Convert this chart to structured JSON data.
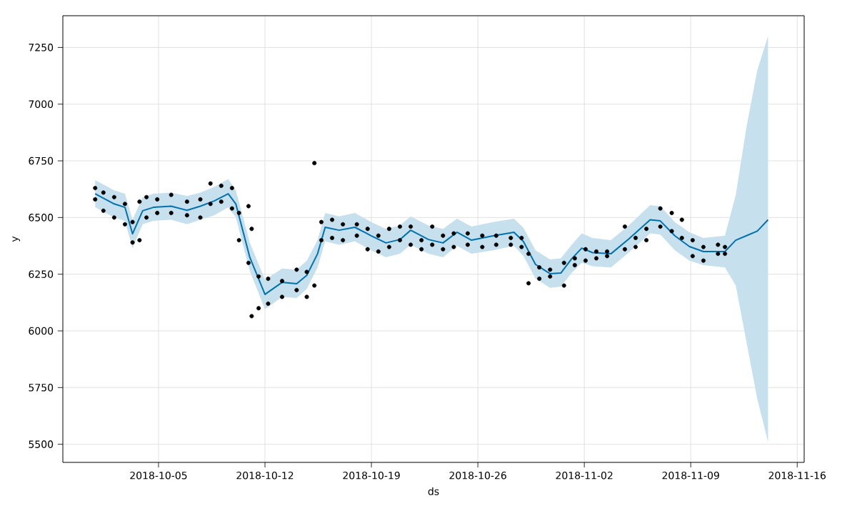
{
  "chart_data": {
    "type": "scatter",
    "xlabel": "ds",
    "ylabel": "y",
    "grid": true,
    "xlim": [
      "2018-09-28T17:00",
      "2018-11-16T11:00"
    ],
    "ylim": [
      5420,
      7390
    ],
    "xticks": [
      "2018-10-05",
      "2018-10-12",
      "2018-10-19",
      "2018-10-26",
      "2018-11-02",
      "2018-11-09",
      "2018-11-16"
    ],
    "yticks": [
      5500,
      5750,
      6000,
      6250,
      6500,
      6750,
      7000,
      7250
    ],
    "series": [
      {
        "color": "#000000",
        "marker": "circle",
        "x": [
          "2018-09-30T20:00",
          "2018-09-30T20:00",
          "2018-10-01T09:00",
          "2018-10-01T09:00",
          "2018-10-02T02:00",
          "2018-10-02T02:00",
          "2018-10-02T19:00",
          "2018-10-02T19:00",
          "2018-10-03T07:00",
          "2018-10-03T07:00",
          "2018-10-03T18:00",
          "2018-10-03T18:00",
          "2018-10-04T05:00",
          "2018-10-04T05:00",
          "2018-10-04T22:00",
          "2018-10-04T22:00",
          "2018-10-05T20:00",
          "2018-10-05T20:00",
          "2018-10-06T21:00",
          "2018-10-06T21:00",
          "2018-10-07T18:00",
          "2018-10-07T18:00",
          "2018-10-08T10:00",
          "2018-10-08T10:00",
          "2018-10-09T03:00",
          "2018-10-09T03:00",
          "2018-10-09T20:00",
          "2018-10-09T20:00",
          "2018-10-10T07:00",
          "2018-10-10T07:00",
          "2018-10-10T22:00",
          "2018-10-10T22:00",
          "2018-10-11T03:00",
          "2018-10-11T03:00",
          "2018-10-11T14:00",
          "2018-10-11T14:00",
          "2018-10-12T05:00",
          "2018-10-12T05:00",
          "2018-10-13T03:00",
          "2018-10-13T03:00",
          "2018-10-14T02:00",
          "2018-10-14T02:00",
          "2018-10-14T18:00",
          "2018-10-14T18:00",
          "2018-10-15T06:00",
          "2018-10-15T06:00",
          "2018-10-15T17:00",
          "2018-10-15T17:00",
          "2018-10-16T10:00",
          "2018-10-16T10:00",
          "2018-10-17T03:00",
          "2018-10-17T03:00",
          "2018-10-18T01:00",
          "2018-10-18T01:00",
          "2018-10-18T18:00",
          "2018-10-18T18:00",
          "2018-10-19T11:00",
          "2018-10-19T11:00",
          "2018-10-20T04:00",
          "2018-10-20T04:00",
          "2018-10-20T21:00",
          "2018-10-20T21:00",
          "2018-10-21T14:00",
          "2018-10-21T14:00",
          "2018-10-22T07:00",
          "2018-10-22T07:00",
          "2018-10-23T00:00",
          "2018-10-23T00:00",
          "2018-10-23T17:00",
          "2018-10-23T17:00",
          "2018-10-24T10:00",
          "2018-10-24T10:00",
          "2018-10-25T08:00",
          "2018-10-25T08:00",
          "2018-10-26T07:00",
          "2018-10-26T07:00",
          "2018-10-27T05:00",
          "2018-10-27T05:00",
          "2018-10-28T04:00",
          "2018-10-28T04:00",
          "2018-10-28T21:00",
          "2018-10-28T21:00",
          "2018-10-29T08:00",
          "2018-10-29T08:00",
          "2018-10-30T01:00",
          "2018-10-30T01:00",
          "2018-10-30T18:00",
          "2018-10-30T18:00",
          "2018-10-31T16:00",
          "2018-10-31T16:00",
          "2018-11-01T09:00",
          "2018-11-01T09:00",
          "2018-11-02T02:00",
          "2018-11-02T02:00",
          "2018-11-02T19:00",
          "2018-11-02T19:00",
          "2018-11-03T12:00",
          "2018-11-03T12:00",
          "2018-11-04T16:00",
          "2018-11-04T16:00",
          "2018-11-05T09:00",
          "2018-11-05T09:00",
          "2018-11-06T02:00",
          "2018-11-06T02:00",
          "2018-11-07T00:00",
          "2018-11-07T00:00",
          "2018-11-07T18:00",
          "2018-11-07T18:00",
          "2018-11-08T10:00",
          "2018-11-08T10:00",
          "2018-11-09T03:00",
          "2018-11-09T03:00",
          "2018-11-09T20:00",
          "2018-11-09T20:00",
          "2018-11-10T19:00",
          "2018-11-10T19:00",
          "2018-11-11T06:00",
          "2018-11-11T06:00"
        ],
        "values": [
          6630,
          6580,
          6610,
          6530,
          6590,
          6500,
          6560,
          6470,
          6480,
          6390,
          6570,
          6400,
          6590,
          6500,
          6580,
          6520,
          6600,
          6520,
          6570,
          6510,
          6580,
          6500,
          6650,
          6560,
          6640,
          6570,
          6630,
          6540,
          6520,
          6400,
          6550,
          6300,
          6450,
          6065,
          6240,
          6100,
          6230,
          6120,
          6220,
          6150,
          6270,
          6180,
          6260,
          6150,
          6740,
          6200,
          6480,
          6400,
          6490,
          6410,
          6470,
          6400,
          6470,
          6420,
          6450,
          6360,
          6420,
          6350,
          6450,
          6370,
          6460,
          6400,
          6460,
          6380,
          6400,
          6360,
          6460,
          6380,
          6420,
          6360,
          6430,
          6370,
          6430,
          6380,
          6420,
          6370,
          6420,
          6380,
          6410,
          6380,
          6410,
          6370,
          6340,
          6210,
          6280,
          6230,
          6270,
          6240,
          6300,
          6200,
          6320,
          6290,
          6360,
          6310,
          6350,
          6320,
          6350,
          6330,
          6460,
          6360,
          6410,
          6370,
          6450,
          6400,
          6540,
          6460,
          6520,
          6440,
          6490,
          6410,
          6400,
          6330,
          6370,
          6310,
          6380,
          6340,
          6370,
          6340
        ]
      },
      {
        "type": "line",
        "color": "#0072b2",
        "marker": "none",
        "x": [
          "2018-09-30T20:00",
          "2018-10-02T02:00",
          "2018-10-02T19:00",
          "2018-10-03T07:00",
          "2018-10-03T23:00",
          "2018-10-04T16:00",
          "2018-10-05T20:00",
          "2018-10-06T21:00",
          "2018-10-07T18:00",
          "2018-10-08T16:00",
          "2018-10-09T14:00",
          "2018-10-10T02:00",
          "2018-10-11T00:00",
          "2018-10-12T00:00",
          "2018-10-13T03:00",
          "2018-10-14T02:00",
          "2018-10-14T18:00",
          "2018-10-15T11:00",
          "2018-10-15T23:00",
          "2018-10-16T21:00",
          "2018-10-17T22:00",
          "2018-10-19T00:00",
          "2018-10-19T23:00",
          "2018-10-20T21:00",
          "2018-10-21T14:00",
          "2018-10-22T18:00",
          "2018-10-23T17:00",
          "2018-10-24T15:00",
          "2018-10-25T14:00",
          "2018-10-27T00:00",
          "2018-10-28T09:00",
          "2018-10-29T00:00",
          "2018-10-29T19:00",
          "2018-10-30T18:00",
          "2018-10-31T11:00",
          "2018-11-01T04:00",
          "2018-11-01T20:00",
          "2018-11-02T13:00",
          "2018-11-03T18:00",
          "2018-11-04T22:00",
          "2018-11-06T08:00",
          "2018-11-07T00:00",
          "2018-11-07T23:00",
          "2018-11-08T22:00",
          "2018-11-09T20:00",
          "2018-11-11T06:00",
          "2018-11-11T23:00",
          "2018-11-12T16:00",
          "2018-11-13T09:00",
          "2018-11-14T02:00"
        ],
        "values": [
          6605,
          6560,
          6545,
          6428,
          6530,
          6545,
          6550,
          6532,
          6550,
          6573,
          6605,
          6560,
          6325,
          6161,
          6214,
          6208,
          6245,
          6340,
          6457,
          6444,
          6457,
          6419,
          6388,
          6403,
          6444,
          6403,
          6388,
          6435,
          6400,
          6419,
          6435,
          6394,
          6293,
          6252,
          6255,
          6318,
          6365,
          6345,
          6340,
          6405,
          6490,
          6485,
          6419,
          6372,
          6350,
          6350,
          6400,
          6420,
          6440,
          6490
        ],
        "lower": [
          6545,
          6500,
          6485,
          6365,
          6470,
          6485,
          6490,
          6470,
          6490,
          6510,
          6545,
          6500,
          6265,
          6095,
          6150,
          6145,
          6185,
          6280,
          6395,
          6380,
          6395,
          6355,
          6325,
          6340,
          6380,
          6340,
          6325,
          6375,
          6340,
          6355,
          6375,
          6330,
          6230,
          6190,
          6195,
          6255,
          6300,
          6285,
          6280,
          6345,
          6430,
          6425,
          6355,
          6310,
          6290,
          6280,
          6200,
          5950,
          5700,
          5510
        ],
        "upper": [
          6665,
          6620,
          6605,
          6490,
          6590,
          6605,
          6610,
          6595,
          6610,
          6635,
          6670,
          6620,
          6390,
          6225,
          6275,
          6270,
          6310,
          6400,
          6520,
          6505,
          6520,
          6480,
          6450,
          6465,
          6505,
          6465,
          6450,
          6495,
          6460,
          6480,
          6495,
          6455,
          6355,
          6315,
          6320,
          6380,
          6430,
          6410,
          6400,
          6465,
          6555,
          6550,
          6480,
          6435,
          6410,
          6420,
          6600,
          6900,
          7150,
          7300
        ]
      }
    ]
  }
}
